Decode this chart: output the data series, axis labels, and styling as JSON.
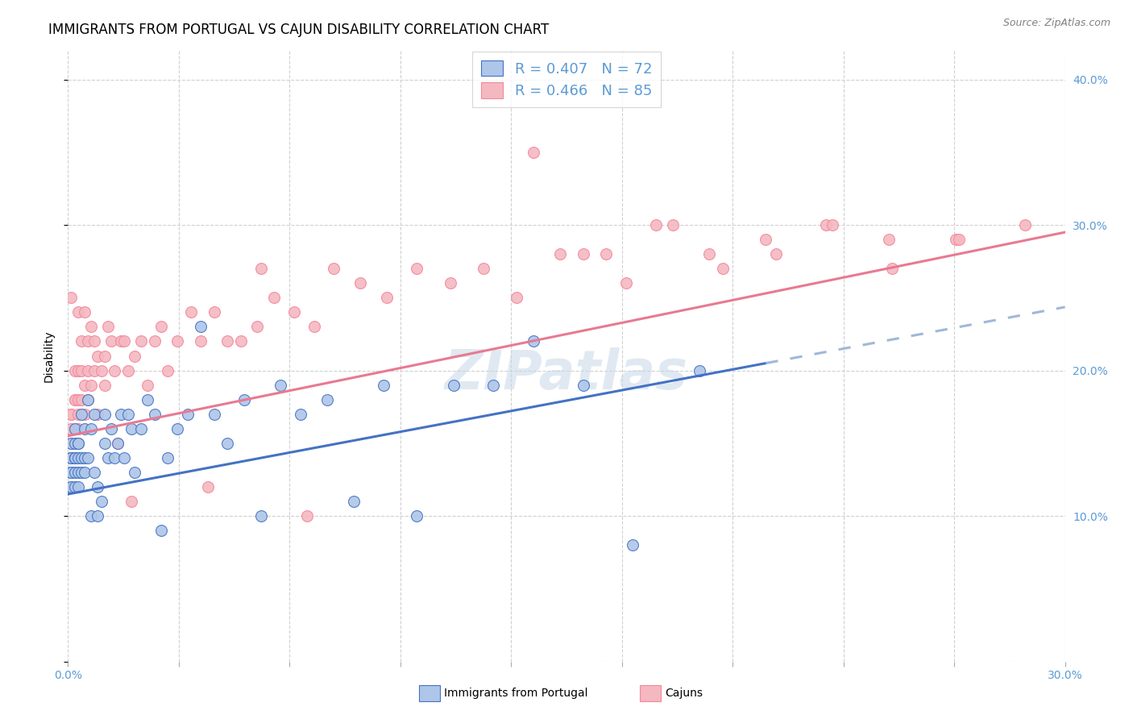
{
  "title": "IMMIGRANTS FROM PORTUGAL VS CAJUN DISABILITY CORRELATION CHART",
  "source": "Source: ZipAtlas.com",
  "ylabel": "Disability",
  "xlim": [
    0.0,
    0.3
  ],
  "ylim": [
    0.0,
    0.42
  ],
  "xticks": [
    0.0,
    0.03333,
    0.06667,
    0.1,
    0.13333,
    0.16667,
    0.2,
    0.23333,
    0.26667,
    0.3
  ],
  "yticks": [
    0.0,
    0.1,
    0.2,
    0.3,
    0.4
  ],
  "blue_color": "#5b9bd5",
  "pink_color": "#f4869a",
  "blue_scatter_color": "#aec6e8",
  "pink_scatter_color": "#f4b8c1",
  "blue_line_color": "#4472c4",
  "pink_line_color": "#e87a91",
  "dashed_line_color": "#a0b8d8",
  "watermark": "ZIPatlas",
  "portugal_x": [
    0.001,
    0.001,
    0.001,
    0.001,
    0.001,
    0.001,
    0.001,
    0.001,
    0.001,
    0.001,
    0.002,
    0.002,
    0.002,
    0.002,
    0.002,
    0.002,
    0.002,
    0.003,
    0.003,
    0.003,
    0.003,
    0.003,
    0.004,
    0.004,
    0.004,
    0.005,
    0.005,
    0.005,
    0.006,
    0.006,
    0.007,
    0.007,
    0.008,
    0.008,
    0.009,
    0.009,
    0.01,
    0.011,
    0.011,
    0.012,
    0.013,
    0.014,
    0.015,
    0.016,
    0.017,
    0.018,
    0.019,
    0.02,
    0.022,
    0.024,
    0.026,
    0.028,
    0.03,
    0.033,
    0.036,
    0.04,
    0.044,
    0.048,
    0.053,
    0.058,
    0.064,
    0.07,
    0.078,
    0.086,
    0.095,
    0.105,
    0.116,
    0.128,
    0.14,
    0.155,
    0.17,
    0.19
  ],
  "portugal_y": [
    0.14,
    0.13,
    0.12,
    0.14,
    0.13,
    0.14,
    0.12,
    0.15,
    0.13,
    0.14,
    0.14,
    0.13,
    0.15,
    0.14,
    0.12,
    0.16,
    0.14,
    0.15,
    0.13,
    0.14,
    0.12,
    0.15,
    0.14,
    0.13,
    0.17,
    0.14,
    0.16,
    0.13,
    0.14,
    0.18,
    0.1,
    0.16,
    0.13,
    0.17,
    0.1,
    0.12,
    0.11,
    0.15,
    0.17,
    0.14,
    0.16,
    0.14,
    0.15,
    0.17,
    0.14,
    0.17,
    0.16,
    0.13,
    0.16,
    0.18,
    0.17,
    0.09,
    0.14,
    0.16,
    0.17,
    0.23,
    0.17,
    0.15,
    0.18,
    0.1,
    0.19,
    0.17,
    0.18,
    0.11,
    0.19,
    0.1,
    0.19,
    0.19,
    0.22,
    0.19,
    0.08,
    0.2
  ],
  "cajun_x": [
    0.001,
    0.001,
    0.001,
    0.001,
    0.001,
    0.002,
    0.002,
    0.002,
    0.002,
    0.002,
    0.003,
    0.003,
    0.003,
    0.003,
    0.003,
    0.004,
    0.004,
    0.004,
    0.005,
    0.005,
    0.005,
    0.006,
    0.006,
    0.006,
    0.007,
    0.007,
    0.008,
    0.008,
    0.009,
    0.009,
    0.01,
    0.011,
    0.012,
    0.013,
    0.014,
    0.015,
    0.016,
    0.017,
    0.018,
    0.019,
    0.02,
    0.022,
    0.024,
    0.026,
    0.028,
    0.03,
    0.033,
    0.037,
    0.04,
    0.044,
    0.048,
    0.052,
    0.057,
    0.062,
    0.068,
    0.074,
    0.08,
    0.088,
    0.096,
    0.105,
    0.115,
    0.125,
    0.135,
    0.148,
    0.162,
    0.177,
    0.193,
    0.21,
    0.228,
    0.247,
    0.267,
    0.155,
    0.168,
    0.182,
    0.197,
    0.213,
    0.23,
    0.248,
    0.268,
    0.288,
    0.042,
    0.058,
    0.072,
    0.011,
    0.14
  ],
  "cajun_y": [
    0.15,
    0.17,
    0.25,
    0.17,
    0.16,
    0.18,
    0.16,
    0.14,
    0.2,
    0.18,
    0.17,
    0.18,
    0.2,
    0.24,
    0.16,
    0.22,
    0.18,
    0.2,
    0.19,
    0.17,
    0.24,
    0.2,
    0.22,
    0.18,
    0.23,
    0.19,
    0.22,
    0.2,
    0.21,
    0.17,
    0.2,
    0.19,
    0.23,
    0.22,
    0.2,
    0.15,
    0.22,
    0.22,
    0.2,
    0.11,
    0.21,
    0.22,
    0.19,
    0.22,
    0.23,
    0.2,
    0.22,
    0.24,
    0.22,
    0.24,
    0.22,
    0.22,
    0.23,
    0.25,
    0.24,
    0.23,
    0.27,
    0.26,
    0.25,
    0.27,
    0.26,
    0.27,
    0.25,
    0.28,
    0.28,
    0.3,
    0.28,
    0.29,
    0.3,
    0.29,
    0.29,
    0.28,
    0.26,
    0.3,
    0.27,
    0.28,
    0.3,
    0.27,
    0.29,
    0.3,
    0.12,
    0.27,
    0.1,
    0.21,
    0.35
  ],
  "blue_line_start_x": 0.0,
  "blue_line_end_x": 0.21,
  "blue_line_start_y": 0.115,
  "blue_line_end_y": 0.205,
  "pink_line_start_x": 0.0,
  "pink_line_end_x": 0.3,
  "pink_line_start_y": 0.155,
  "pink_line_end_y": 0.295,
  "title_fontsize": 12,
  "axis_label_fontsize": 10,
  "tick_fontsize": 10,
  "legend_fontsize": 13,
  "watermark_fontsize": 48,
  "background_color": "#ffffff",
  "grid_color": "#d0d0d0"
}
